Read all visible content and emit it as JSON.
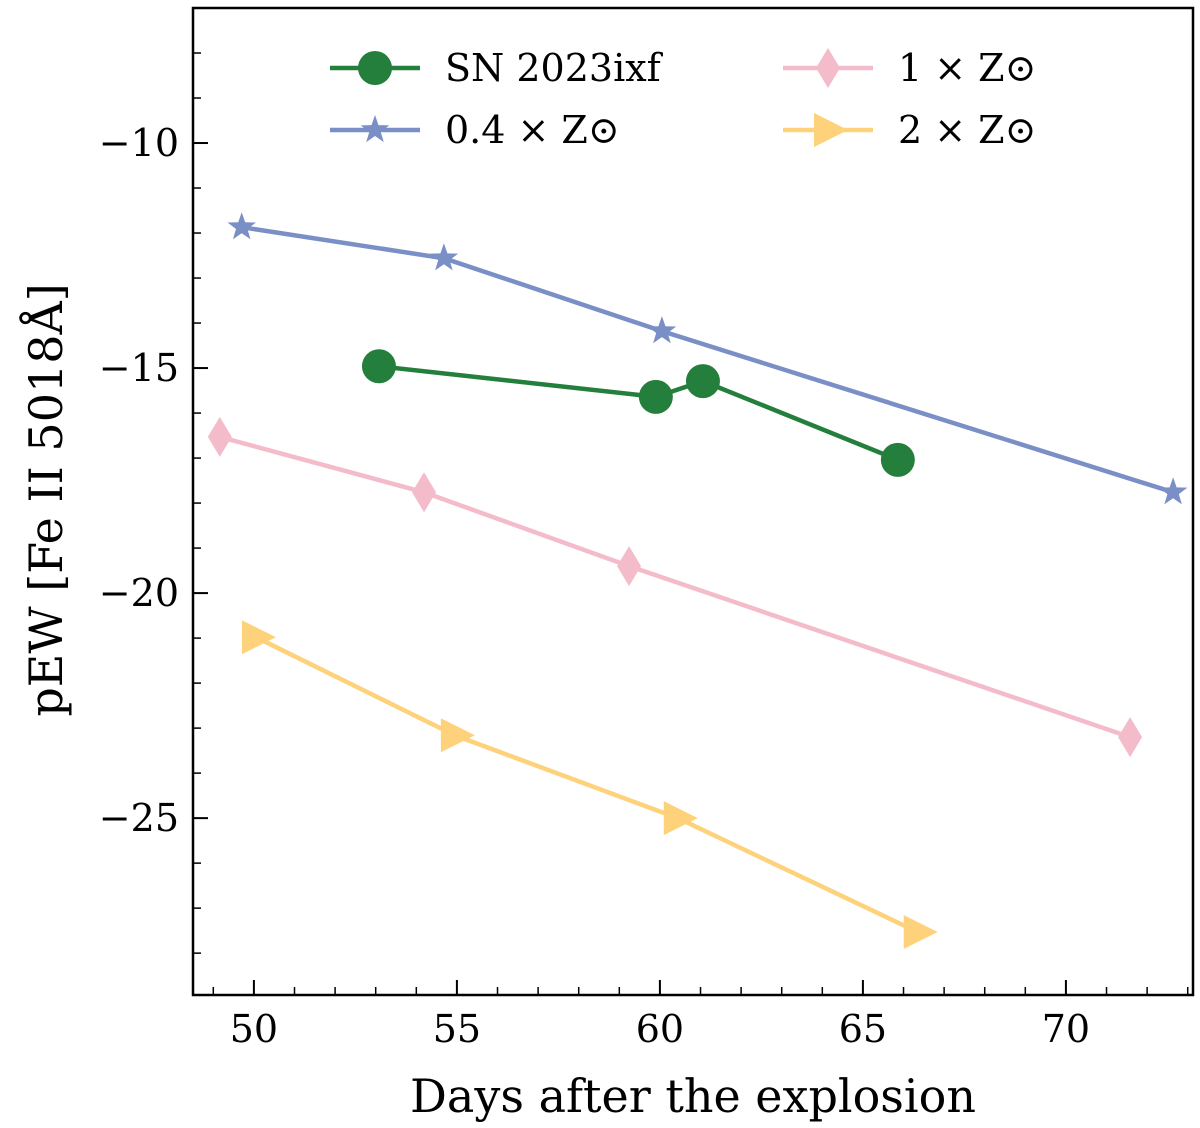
{
  "chart_data": {
    "type": "line",
    "title": "",
    "xlabel": "Days after the explosion",
    "ylabel": "pEW [Fe II 5018Å]",
    "xlim": [
      48.5,
      73.13
    ],
    "ylim": [
      -28.93,
      -7.0
    ],
    "xticks": [
      50,
      55,
      60,
      65,
      70
    ],
    "xtick_labels": [
      "50",
      "55",
      "60",
      "65",
      "70"
    ],
    "yticks": [
      -10,
      -15,
      -20,
      -25
    ],
    "ytick_labels": [
      "−10",
      "−15",
      "−20",
      "−25"
    ],
    "grid": false,
    "legend_placement": "top",
    "series": [
      {
        "name": "SN 2023ixf",
        "marker": "circle",
        "color": "#237f3b",
        "x": [
          53.08,
          59.9,
          61.06,
          65.86
        ],
        "y": [
          -14.96,
          -15.64,
          -15.29,
          -17.04
        ]
      },
      {
        "name": "0.4 × Z⊙",
        "marker": "star",
        "color": "#7b8fc7",
        "x": [
          49.7,
          54.68,
          60.05,
          72.64
        ],
        "y": [
          -11.87,
          -12.56,
          -14.18,
          -17.76
        ]
      },
      {
        "name": "1 × Z⊙",
        "marker": "diamond",
        "color": "#f4bccb",
        "x": [
          49.16,
          54.19,
          59.24,
          71.58
        ],
        "y": [
          -16.53,
          -17.76,
          -19.4,
          -23.2
        ]
      },
      {
        "name": "2 × Z⊙",
        "marker": "triangle-right",
        "color": "#fdd27a",
        "x": [
          50.05,
          54.95,
          60.44,
          66.35
        ],
        "y": [
          -20.98,
          -23.16,
          -25.0,
          -27.53
        ]
      }
    ]
  }
}
